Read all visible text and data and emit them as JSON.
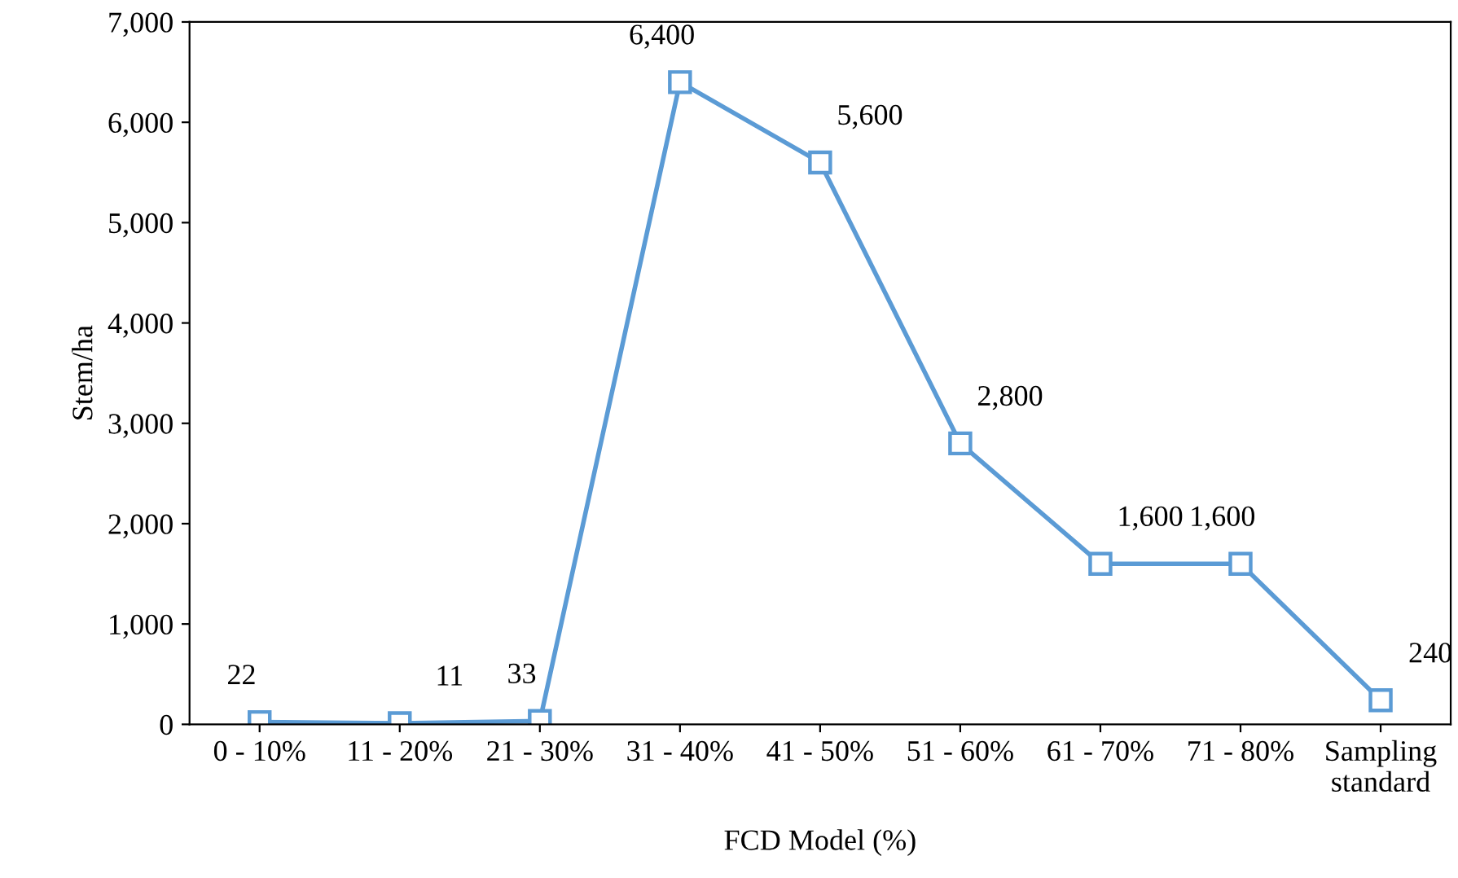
{
  "chart_data": {
    "type": "line",
    "xlabel": "FCD Model (%)",
    "ylabel": "Stem/ha",
    "categories": [
      "0 - 10%",
      "11 - 20%",
      "21 - 30%",
      "31 - 40%",
      "41 - 50%",
      "51 - 60%",
      "61 - 70%",
      "71 - 80%",
      "Sampling\nstandard"
    ],
    "series": [
      {
        "color": "#5b9bd5",
        "values": [
          22,
          11,
          33,
          6400,
          5600,
          2800,
          1600,
          1600,
          240
        ],
        "value_labels": [
          "22",
          "11",
          "33",
          "6,400",
          "5,600",
          "2,800",
          "1,600",
          "1,600",
          "240"
        ]
      }
    ],
    "ylim": [
      0,
      7000
    ],
    "yticks": [
      0,
      {
        "value": 1000,
        "label": "1,000"
      },
      {
        "value": 2000,
        "label": "2,000"
      },
      {
        "value": 3000,
        "label": "3,000"
      },
      {
        "value": 4000,
        "label": "4,000"
      },
      {
        "value": 5000,
        "label": "5,000"
      },
      {
        "value": 6000,
        "label": "6,000"
      },
      {
        "value": 7000,
        "label": "7,000"
      }
    ],
    "marker": "square",
    "line_style": "solid",
    "grid": false,
    "legend": false
  }
}
